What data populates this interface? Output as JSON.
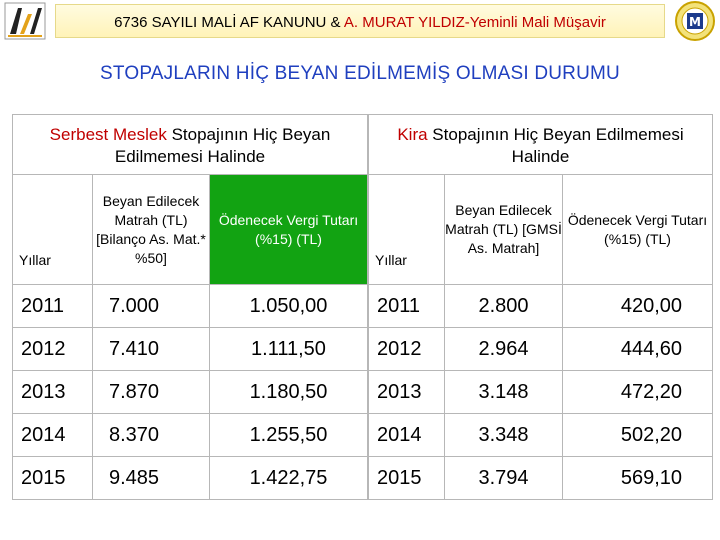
{
  "header": {
    "title_prefix": "6736 SAYILI MALİ AF KANUNU & ",
    "title_accent": "A. MURAT YILDIZ-Yeminli Mali Müşavir",
    "logo_left_icon": "stylized-hy-logo-icon",
    "logo_right_icon": "round-seal-icon",
    "logo_right_letter": "M"
  },
  "heading": "STOPAJLARIN HİÇ BEYAN EDİLMEMİŞ OLMASI DURUMU",
  "left_table": {
    "title_red": "Serbest Meslek",
    "title_rest": " Stopajının Hiç Beyan Edilmemesi Halinde",
    "col_year": "Yıllar",
    "col_base": "Beyan Edilecek Matrah (TL) [Bilanço As. Mat.* %50]",
    "col_tax": "Ödenecek Vergi Tutarı (%15) (TL)",
    "rows": [
      {
        "year": "2011",
        "base": "7.000",
        "tax": "1.050,00"
      },
      {
        "year": "2012",
        "base": "7.410",
        "tax": "1.111,50"
      },
      {
        "year": "2013",
        "base": "7.870",
        "tax": "1.180,50"
      },
      {
        "year": "2014",
        "base": "8.370",
        "tax": "1.255,50"
      },
      {
        "year": "2015",
        "base": "9.485",
        "tax": "1.422,75"
      }
    ]
  },
  "right_table": {
    "title_red": "Kira",
    "title_rest": " Stopajının Hiç Beyan Edilmemesi Halinde",
    "col_year": "Yıllar",
    "col_base": "Beyan Edilecek Matrah (TL) [GMSİ As. Matrah]",
    "col_tax": "Ödenecek Vergi Tutarı (%15) (TL)",
    "rows": [
      {
        "year": "2011",
        "base": "2.800",
        "tax": "420,00"
      },
      {
        "year": "2012",
        "base": "2.964",
        "tax": "444,60"
      },
      {
        "year": "2013",
        "base": "3.148",
        "tax": "472,20"
      },
      {
        "year": "2014",
        "base": "3.348",
        "tax": "502,20"
      },
      {
        "year": "2015",
        "base": "3.794",
        "tax": "569,10"
      }
    ]
  },
  "colors": {
    "heading_blue": "#1f3fbf",
    "accent_red": "#c00000",
    "header_green": "#12a312"
  }
}
